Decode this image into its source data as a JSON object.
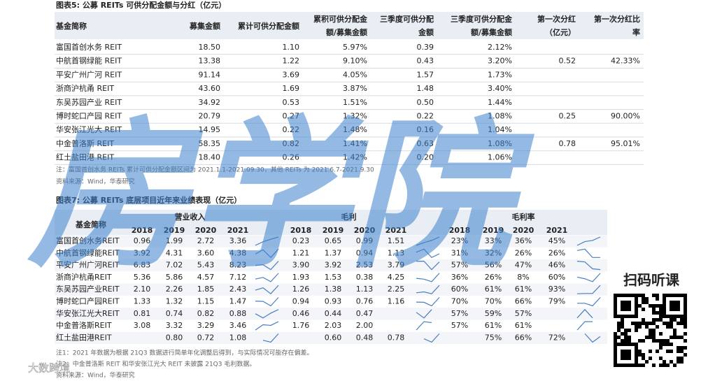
{
  "table5": {
    "title": "图表5:  公募 REITs 可供分配金额与分红（亿元）",
    "headers": [
      "基金简称",
      "募集金额",
      "累计可供分配金额",
      [
        "累积可供分配金",
        "额/募集金额"
      ],
      [
        "三季度可供分配",
        "金额"
      ],
      [
        "三季度可供分配金",
        "额/募集金额"
      ],
      [
        "第一次分红",
        "（亿元）"
      ],
      [
        "第一次分红比",
        "率"
      ]
    ],
    "rows": [
      [
        "富国首创水务 REIT",
        "18.50",
        "1.10",
        "5.97%",
        "0.39",
        "2.12%",
        null,
        null
      ],
      [
        "中航首钢绿能 REIT",
        "13.38",
        "1.22",
        "9.10%",
        "0.43",
        "3.20%",
        "0.52",
        "42.33%"
      ],
      [
        "平安广州广河 REIT",
        "91.14",
        "3.69",
        "4.05%",
        "1.57",
        "1.73%",
        null,
        null
      ],
      [
        "浙商沪杭甬 REIT",
        "43.60",
        "1.69",
        "3.87%",
        "1.48",
        "3.40%",
        null,
        null
      ],
      [
        "东吴苏园产业 REIT",
        "34.92",
        "0.53",
        "1.51%",
        "0.50",
        "1.44%",
        null,
        null
      ],
      [
        "博时蛇口产园 REIT",
        "20.79",
        "0.27",
        "1.32%",
        "0.22",
        "1.08%",
        "0.25",
        "90.00%"
      ],
      [
        "华安张江光大 REIT",
        "14.95",
        "0.22",
        "1.48%",
        "0.16",
        "1.04%",
        null,
        null
      ],
      [
        "中金普洛斯 REIT",
        "58.35",
        "0.82",
        "1.41%",
        "0.63",
        "1.08%",
        "0.78",
        "95.01%"
      ],
      [
        "红土盐田港 REIT",
        "18.40",
        "0.26",
        "1.42%",
        "0.20",
        "1.06%",
        null,
        null
      ]
    ],
    "note": "注：富国首创水务 REITs 累计可供分配金额区间为 2021.1.1-2021.09.30，其他 REITs 为 2021.6.7-2021.9.30",
    "source": "资料来源：Wind，华泰研究"
  },
  "table7": {
    "title": "图表7:  公募 REITs 底层项目近年来业绩表现（亿元）",
    "name_header": "基金简称",
    "groups": [
      "营业收入",
      "毛利",
      "毛利率"
    ],
    "years": [
      "2018",
      "2019",
      "2020",
      "2021"
    ],
    "rows": [
      {
        "name": "富国首创水务REIT",
        "revenue": [
          "0.96",
          "1.99",
          "2.72",
          "3.36"
        ],
        "gross": [
          "0.23",
          "0.65",
          "0.99",
          "1.51"
        ],
        "margin": [
          "23%",
          "33%",
          "36%",
          "45%"
        ]
      },
      {
        "name": "中航首钢绿能REIT",
        "revenue": [
          "3.92",
          "4.31",
          "3.60",
          "4.38"
        ],
        "gross": [
          "1.21",
          "1.37",
          "0.94",
          "1.13"
        ],
        "margin": [
          "31%",
          "32%",
          "26%",
          "26%"
        ]
      },
      {
        "name": "平安广州广河REIT",
        "revenue": [
          "6.83",
          "7.02",
          "5.43",
          "8.23"
        ],
        "gross": [
          "3.90",
          "3.92",
          "2.53",
          "3.79"
        ],
        "margin": [
          "57%",
          "56%",
          "47%",
          "46%"
        ]
      },
      {
        "name": "浙商沪杭甬REIT",
        "revenue": [
          "5.36",
          "5.86",
          "4.57",
          "7.12"
        ],
        "gross": [
          "1.93",
          "1.53",
          "0.38",
          "4.25"
        ],
        "margin": [
          "36%",
          "26%",
          "8%",
          "60%"
        ]
      },
      {
        "name": "东吴苏园产业REIT",
        "revenue": [
          "2.10",
          "2.26",
          "1.85",
          "2.43"
        ],
        "gross": [
          "1.26",
          "1.38",
          "1.13",
          "2.25"
        ],
        "margin": [
          "60%",
          "61%",
          "61%",
          "93%"
        ]
      },
      {
        "name": "博时蛇口产园REIT",
        "revenue": [
          "1.33",
          "1.32",
          "1.15",
          "1.47"
        ],
        "gross": [
          "0.94",
          "0.93",
          "0.76",
          "1.16"
        ],
        "margin": [
          "70%",
          "70%",
          "66%",
          "79%"
        ]
      },
      {
        "name": "华安张江光大REIT",
        "revenue": [
          "0.81",
          "0.74",
          "0.82",
          "0.88"
        ],
        "gross": [
          "0.46",
          "0.44",
          "0.47",
          null
        ],
        "margin": [
          "57%",
          "59%",
          "57%",
          null
        ]
      },
      {
        "name": "中金普洛斯REIT",
        "revenue": [
          "3.08",
          "3.32",
          "3.29",
          "3.46"
        ],
        "gross": [
          "1.76",
          "2.03",
          "2.00",
          null
        ],
        "margin": [
          "57%",
          "61%",
          "61%",
          null
        ]
      },
      {
        "name": "红土盐田港REIT",
        "revenue": [
          null,
          "0.80",
          "0.72",
          "1.08"
        ],
        "gross": [
          null,
          "0.60",
          "0.48",
          "0.78"
        ],
        "margin": [
          null,
          "75%",
          "66%",
          "72%"
        ]
      }
    ],
    "notes": [
      "注1：2021 年数据为根据 21Q3 数据进行简单年化调整后得到，与实际情况可能存在偏差。",
      "注2：中金普洛斯 REIT 和华安张江光大 REIT 未披露 21Q3 毛利数据。"
    ],
    "source": "资料来源：Wind，华泰研究"
  },
  "watermark": "房学院",
  "qr_label": "扫码听课",
  "brand": "大数跨境"
}
